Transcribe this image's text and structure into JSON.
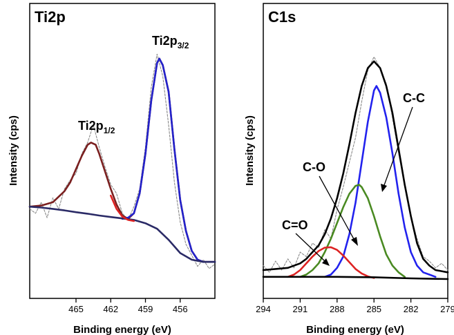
{
  "chart_data": [
    {
      "type": "line",
      "title": "Ti2p",
      "xlabel": "Binding energy (eV)",
      "ylabel": "Intensity (cps)",
      "xlim": [
        469,
        453
      ],
      "x_reversed": true,
      "xticks": [
        465,
        462,
        459,
        456
      ],
      "y_tick_labels": false,
      "ylim": [
        0,
        100
      ],
      "annotations": [
        {
          "base": "Ti2p",
          "sub": "1/2",
          "x": 463.7,
          "y": 72
        },
        {
          "base": "Ti2p",
          "sub": "3/2",
          "x": 457.8,
          "y": 114
        }
      ],
      "series": [
        {
          "role": "raw-data",
          "color": "#8a8a8a",
          "style": "dashed",
          "x": [
            469,
            468.5,
            468,
            467.5,
            467,
            466.5,
            466,
            465.5,
            465,
            464.5,
            464,
            463.5,
            463,
            462.5,
            462,
            461.5,
            461,
            460.5,
            460,
            459.5,
            459,
            458.5,
            458,
            457.5,
            457,
            456.5,
            456,
            455.5,
            455,
            454.5,
            454,
            453.5,
            453
          ],
          "y": [
            33,
            31,
            36,
            29,
            38,
            33,
            42,
            46,
            49,
            58,
            63,
            71,
            61,
            52,
            44,
            40,
            31,
            28,
            34,
            42,
            61,
            88,
            103,
            93,
            71,
            45,
            27,
            17,
            12,
            7,
            10,
            6,
            8
          ]
        },
        {
          "role": "fit-envelope",
          "color": "#7a1f1f",
          "style": "solid",
          "x": [
            469,
            468,
            467,
            466,
            465.5,
            465,
            464.5,
            464,
            463.7,
            463.3,
            463,
            462.5,
            462,
            461.5,
            461,
            460.5,
            460,
            459.5,
            459,
            458.5,
            458,
            457.8,
            457.5,
            457,
            456.5,
            456,
            455.5,
            455,
            454.5,
            454,
            453.5,
            453
          ],
          "y": [
            34,
            34.5,
            36,
            41,
            45,
            51,
            57,
            62,
            63,
            62,
            58,
            50,
            42,
            35,
            30,
            28.5,
            31,
            40,
            58,
            82,
            99,
            101,
            98,
            86,
            60,
            37,
            23,
            14,
            10,
            9,
            9,
            9
          ]
        },
        {
          "role": "Ti2p3/2-component",
          "color": "#2222cc",
          "style": "solid",
          "x": [
            461,
            460.5,
            460,
            459.5,
            459,
            458.5,
            458,
            457.8,
            457.5,
            457,
            456.5,
            456,
            455.5,
            455,
            454.5,
            454,
            453.5,
            453
          ],
          "y": [
            28.5,
            29,
            31,
            40,
            58,
            82,
            99,
            101,
            98,
            86,
            60,
            37,
            23,
            14,
            10,
            9,
            9,
            9
          ]
        },
        {
          "role": "background",
          "color": "#2a2a66",
          "style": "solid",
          "x": [
            469,
            468,
            467,
            466,
            465,
            464,
            463,
            462,
            461,
            460,
            459,
            458,
            457,
            456,
            455,
            454,
            453
          ],
          "y": [
            34,
            33.6,
            33,
            32.3,
            31.5,
            30.8,
            30,
            29.3,
            28.7,
            28,
            26.5,
            24,
            19,
            13,
            10,
            9,
            9
          ]
        },
        {
          "role": "Ti2p1/2-tail",
          "color": "#dd2222",
          "style": "solid",
          "x": [
            462,
            461.5,
            461,
            460.5,
            460
          ],
          "y": [
            39,
            33,
            29.5,
            28,
            27.5
          ]
        }
      ]
    },
    {
      "type": "line",
      "title": "C1s",
      "xlabel": "Binding energy (eV)",
      "ylabel": "Intensity (cps)",
      "xlim": [
        294,
        279
      ],
      "x_reversed": true,
      "xticks": [
        294,
        291,
        288,
        285,
        282,
        279
      ],
      "y_tick_labels": false,
      "ylim": [
        0,
        100
      ],
      "annotations": [
        {
          "label": "C-C",
          "x": 284.2,
          "y": 87
        },
        {
          "label": "C-O",
          "x": 288.2,
          "y": 62
        },
        {
          "label": "C=O",
          "x": 290.7,
          "y": 31
        }
      ],
      "series": [
        {
          "role": "raw-data",
          "color": "#8a8a8a",
          "style": "dashed",
          "x": [
            294,
            293.5,
            293,
            292.5,
            292,
            291.5,
            291,
            290.5,
            290,
            289.5,
            289,
            288.5,
            288,
            287.5,
            287,
            286.5,
            286,
            285.5,
            285,
            284.5,
            284,
            283.5,
            283,
            282.5,
            282,
            281.5,
            281,
            280.5,
            280,
            279.5,
            279
          ],
          "y": [
            6,
            3,
            8,
            4,
            9,
            5,
            12,
            10,
            16,
            14,
            22,
            18,
            31,
            41,
            52,
            63,
            79,
            93,
            99,
            94,
            87,
            72,
            56,
            42,
            28,
            18,
            10,
            8,
            5,
            7,
            4
          ]
        },
        {
          "role": "fit-envelope",
          "color": "#000000",
          "style": "solid",
          "x": [
            294,
            293,
            292,
            291,
            290.5,
            290,
            289.5,
            289,
            288.5,
            288,
            287.5,
            287,
            286.5,
            286,
            285.5,
            285,
            284.5,
            284,
            283.5,
            283,
            282.5,
            282,
            281.5,
            281,
            280.5,
            280,
            279.5,
            279
          ],
          "y": [
            4,
            4.5,
            5,
            7,
            9,
            12,
            15,
            20,
            27,
            36,
            47,
            60,
            74,
            86,
            94,
            97,
            94,
            86,
            74,
            58,
            42,
            28,
            16,
            9,
            6,
            4,
            3.5,
            3
          ]
        },
        {
          "role": "C-C-component",
          "color": "#2222ee",
          "style": "solid",
          "x": [
            289,
            288.5,
            288,
            287.5,
            287,
            286.5,
            286,
            285.5,
            285,
            284.8,
            284.5,
            284,
            283.5,
            283,
            282.5,
            282,
            281.5,
            281,
            280.5,
            280
          ],
          "y": [
            1,
            2,
            5,
            10,
            20,
            34,
            52,
            70,
            84,
            86,
            83,
            72,
            56,
            38,
            23,
            12,
            6,
            3,
            2,
            1
          ]
        },
        {
          "role": "C-O-component",
          "color": "#4a8a22",
          "style": "solid",
          "x": [
            291,
            290.5,
            290,
            289.5,
            289,
            288.5,
            288,
            287.5,
            287,
            286.5,
            286.2,
            286,
            285.5,
            285,
            284.5,
            284,
            283.5,
            283,
            282.5
          ],
          "y": [
            1,
            2,
            4,
            7,
            12,
            18,
            25,
            32,
            38,
            41.5,
            42,
            41,
            36,
            28,
            19,
            11,
            6,
            3,
            1
          ]
        },
        {
          "role": "C=O-component",
          "color": "#dd2222",
          "style": "solid",
          "x": [
            292,
            291.5,
            291,
            290.5,
            290,
            289.5,
            289,
            288.5,
            288,
            287.5,
            287,
            286.5,
            286,
            285.5,
            285
          ],
          "y": [
            1,
            2,
            4,
            7,
            10,
            12.5,
            14,
            14.2,
            13,
            10.5,
            7.5,
            4.5,
            2.5,
            1.2,
            0.5
          ]
        },
        {
          "role": "background",
          "color": "#000000",
          "style": "solid",
          "x": [
            294,
            291,
            288,
            285,
            282,
            279
          ],
          "y": [
            1,
            1,
            1,
            0.8,
            0.3,
            0
          ]
        }
      ]
    }
  ]
}
